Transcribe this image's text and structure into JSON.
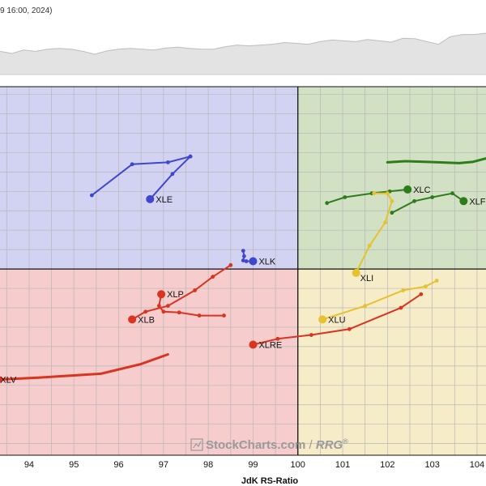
{
  "header": {
    "date_text": "9 16:00, 2024)"
  },
  "watermark": {
    "brand": "StockCharts.com",
    "separator": " / ",
    "product": "RRG",
    "mark": "®"
  },
  "colors": {
    "leading": "#d2e1c4",
    "weakening": "#f7ecc8",
    "lagging": "#f6cccc",
    "improving": "#d2d2f2",
    "grid": "#b7b7b7",
    "benchmark_fill": "#e3e3e3",
    "benchmark_line": "#bdbdbd"
  },
  "chart_data": {
    "type": "scatter",
    "xlabel": "JdK RS-Ratio",
    "x_ticks": [
      94,
      95,
      96,
      97,
      98,
      99,
      100,
      101,
      102,
      103,
      104
    ],
    "xlim": [
      93.35,
      104.2
    ],
    "ylim": [
      95.2,
      104.7
    ],
    "center": [
      100,
      100
    ],
    "grid": true,
    "series": [
      {
        "name": "XLE",
        "color": "#3f47cf",
        "points": [
          [
            95.4,
            101.9
          ],
          [
            96.3,
            102.7
          ],
          [
            97.1,
            102.75
          ],
          [
            97.6,
            102.9
          ],
          [
            97.6,
            102.9
          ],
          [
            97.2,
            102.45
          ],
          [
            96.7,
            101.8
          ]
        ]
      },
      {
        "name": "XLK",
        "color": "#3f47cf",
        "points": [
          [
            98.78,
            100.47
          ],
          [
            98.8,
            100.33
          ],
          [
            98.78,
            100.22
          ],
          [
            98.85,
            100.2
          ],
          [
            99.0,
            100.2
          ]
        ]
      },
      {
        "name": "XLC",
        "color": "#2e7d1b",
        "points": [
          [
            100.65,
            101.7
          ],
          [
            101.05,
            101.85
          ],
          [
            101.65,
            101.95
          ],
          [
            102.05,
            102.0
          ],
          [
            102.45,
            102.05
          ]
        ]
      },
      {
        "name": "XLF",
        "color": "#2e7d1b",
        "points": [
          [
            102.1,
            101.45
          ],
          [
            102.6,
            101.75
          ],
          [
            103.0,
            101.85
          ],
          [
            103.45,
            101.95
          ],
          [
            103.7,
            101.75
          ]
        ]
      },
      {
        "name": "XLI",
        "color": "#e6c22e",
        "points": [
          [
            101.7,
            101.95
          ],
          [
            102.0,
            101.95
          ],
          [
            102.1,
            101.75
          ],
          [
            101.95,
            101.2
          ],
          [
            101.6,
            100.6
          ],
          [
            101.3,
            99.9
          ]
        ]
      },
      {
        "name": "XLP",
        "color": "#d83420",
        "points": [
          [
            98.35,
            98.8
          ],
          [
            97.8,
            98.8
          ],
          [
            97.35,
            98.88
          ],
          [
            97.0,
            98.9
          ],
          [
            96.9,
            99.05
          ],
          [
            96.95,
            99.35
          ]
        ]
      },
      {
        "name": "XLB",
        "color": "#d83420",
        "points": [
          [
            98.5,
            100.1
          ],
          [
            98.1,
            99.8
          ],
          [
            97.7,
            99.45
          ],
          [
            97.1,
            99.05
          ],
          [
            96.6,
            98.9
          ],
          [
            96.3,
            98.7
          ]
        ]
      },
      {
        "name": "XLV",
        "color": "#d83420",
        "points": [
          [
            97.1,
            97.8
          ],
          [
            96.5,
            97.55
          ],
          [
            95.6,
            97.3
          ],
          [
            94.2,
            97.2
          ],
          [
            93.3,
            97.15
          ]
        ]
      },
      {
        "name": "XLRE",
        "color": "#d83420",
        "points": [
          [
            102.75,
            99.35
          ],
          [
            102.3,
            99.0
          ],
          [
            101.15,
            98.45
          ],
          [
            100.3,
            98.3
          ],
          [
            99.55,
            98.2
          ],
          [
            99.0,
            98.05
          ]
        ]
      },
      {
        "name": "XLU",
        "color": "#e6c22e",
        "points": [
          [
            103.1,
            99.7
          ],
          [
            102.85,
            99.55
          ],
          [
            102.35,
            99.45
          ],
          [
            101.5,
            99.05
          ],
          [
            100.55,
            98.7
          ]
        ]
      },
      {
        "name": "",
        "color": "#2e7d1b",
        "points": [
          [
            102.0,
            102.75
          ],
          [
            102.4,
            102.78
          ],
          [
            102.9,
            102.76
          ],
          [
            103.6,
            102.73
          ],
          [
            103.9,
            102.76
          ],
          [
            104.2,
            102.85
          ]
        ]
      }
    ],
    "benchmark_strip": {
      "values": [
        0.55,
        0.5,
        0.58,
        0.55,
        0.6,
        0.62,
        0.6,
        0.55,
        0.48,
        0.56,
        0.6,
        0.62,
        0.6,
        0.58,
        0.63,
        0.65,
        0.62,
        0.6,
        0.6,
        0.66,
        0.7,
        0.68,
        0.7,
        0.72,
        0.76,
        0.74,
        0.72,
        0.78,
        0.82,
        0.8,
        0.78,
        0.83,
        0.8,
        0.77,
        0.86,
        0.85,
        0.78,
        0.72,
        0.9,
        0.95,
        0.95,
        0.98
      ]
    }
  }
}
